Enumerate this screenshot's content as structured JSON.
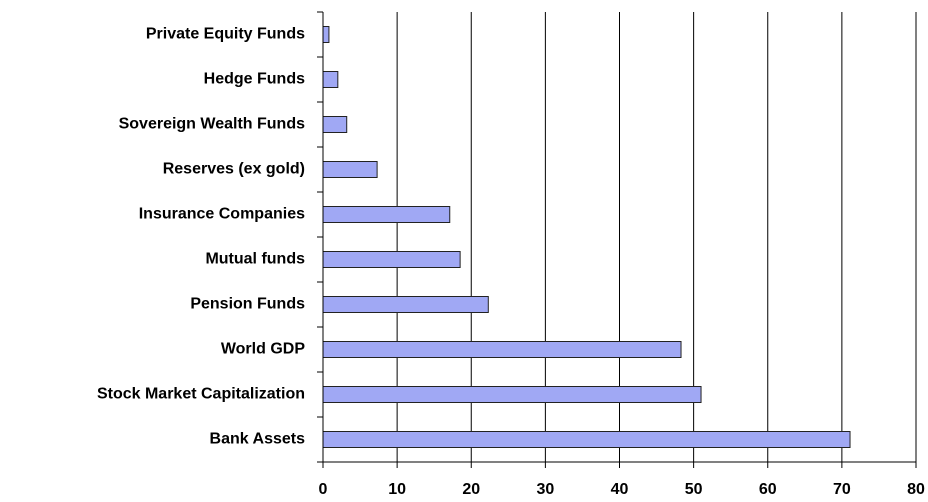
{
  "chart_data": {
    "type": "bar",
    "orientation": "horizontal",
    "categories": [
      "Private Equity Funds",
      "Hedge Funds",
      "Sovereign Wealth Funds",
      "Reserves (ex gold)",
      "Insurance Companies",
      "Mutual funds",
      "Pension Funds",
      "World GDP",
      "Stock Market Capitalization",
      "Bank Assets"
    ],
    "values": [
      0.8,
      2.0,
      3.2,
      7.3,
      17.1,
      18.5,
      22.3,
      48.3,
      51.0,
      71.1
    ],
    "color": "#a0a8f4",
    "xlim": [
      0,
      80
    ],
    "xticks": [
      0,
      10,
      20,
      30,
      40,
      50,
      60,
      70,
      80
    ],
    "grid": true
  }
}
